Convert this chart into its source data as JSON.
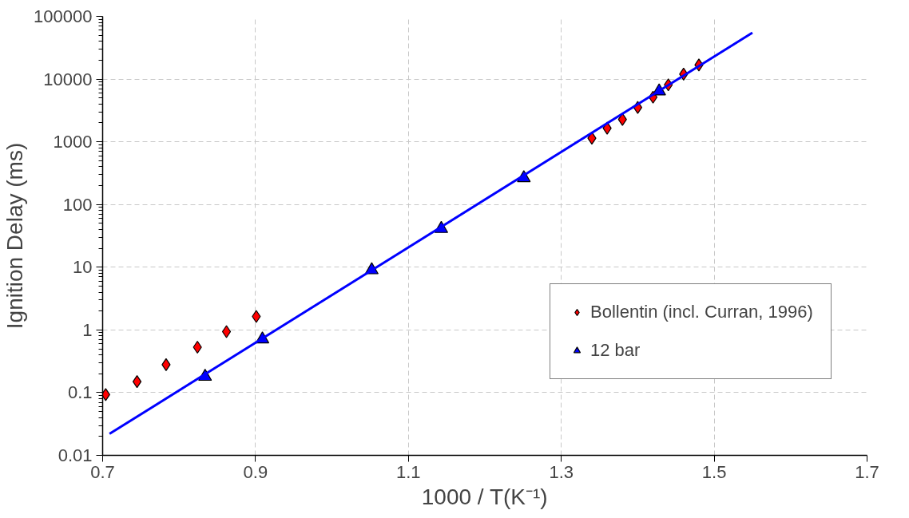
{
  "chart_data": {
    "type": "scatter",
    "xlabel": "1000 / T(K⁻¹)",
    "ylabel": "Ignition Delay (ms)",
    "xlim": [
      0.7,
      1.7
    ],
    "xticks": [
      0.7,
      0.9,
      1.1,
      1.3,
      1.5,
      1.7
    ],
    "ylim": [
      0.01,
      100000
    ],
    "yticks": [
      0.01,
      0.1,
      1,
      10,
      100,
      1000,
      10000,
      100000
    ],
    "log": "y",
    "grid": true,
    "legend": "right",
    "series": [
      {
        "name": "Bollentin (incl. Curran, 1996)",
        "marker": "diamond",
        "color": "#ff0000",
        "x": [
          0.704,
          0.745,
          0.783,
          0.824,
          0.862,
          0.901,
          1.34,
          1.36,
          1.38,
          1.4,
          1.42,
          1.44,
          1.46,
          1.48
        ],
        "values": [
          0.093,
          0.15,
          0.28,
          0.53,
          0.94,
          1.64,
          1140,
          1650,
          2270,
          3530,
          5150,
          8100,
          12000,
          16800
        ]
      },
      {
        "name": "12 bar",
        "marker": "triangle",
        "color": "#0000ff",
        "x": [
          0.834,
          0.909,
          1.052,
          1.143,
          1.251,
          1.428
        ],
        "values": [
          0.18,
          0.71,
          9,
          41,
          265,
          6400
        ]
      },
      {
        "type": "line",
        "marker": "none",
        "color": "#0000ff",
        "x": [
          0.709,
          1.55
        ],
        "values": [
          0.022,
          55000
        ]
      }
    ]
  }
}
